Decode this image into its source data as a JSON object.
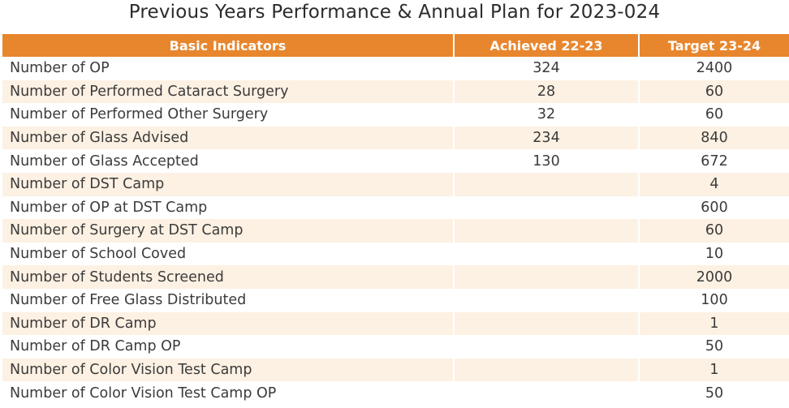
{
  "title": "Previous Years Performance & Annual Plan for 2023-024",
  "table": {
    "headers": [
      "Basic Indicators",
      "Achieved 22-23",
      "Target 23-24"
    ],
    "rows": [
      {
        "indicator": "Number of OP",
        "achieved": "324",
        "target": "2400"
      },
      {
        "indicator": "Number of Performed Cataract Surgery",
        "achieved": "28",
        "target": "60"
      },
      {
        "indicator": "Number of Performed Other Surgery",
        "achieved": "32",
        "target": "60"
      },
      {
        "indicator": "Number of Glass Advised",
        "achieved": "234",
        "target": "840"
      },
      {
        "indicator": "Number of Glass Accepted",
        "achieved": "130",
        "target": "672"
      },
      {
        "indicator": "Number of DST Camp",
        "achieved": "",
        "target": "4"
      },
      {
        "indicator": "Number of OP at DST Camp",
        "achieved": "",
        "target": "600"
      },
      {
        "indicator": "Number of Surgery at DST Camp",
        "achieved": "",
        "target": "60"
      },
      {
        "indicator": "Number of School Coved",
        "achieved": "",
        "target": "10"
      },
      {
        "indicator": "Number of Students Screened",
        "achieved": "",
        "target": "2000"
      },
      {
        "indicator": "Number of Free Glass Distributed",
        "achieved": "",
        "target": "100"
      },
      {
        "indicator": "Number of DR Camp",
        "achieved": "",
        "target": "1"
      },
      {
        "indicator": "Number of DR Camp OP",
        "achieved": "",
        "target": "50"
      },
      {
        "indicator": "Number of Color Vision Test Camp",
        "achieved": "",
        "target": "1"
      },
      {
        "indicator": "Number of Color Vision Test Camp OP",
        "achieved": "",
        "target": "50"
      }
    ]
  },
  "colors": {
    "header_bg": "#e8862d",
    "header_text": "#ffffff",
    "stripe": "#fdf1e3"
  }
}
